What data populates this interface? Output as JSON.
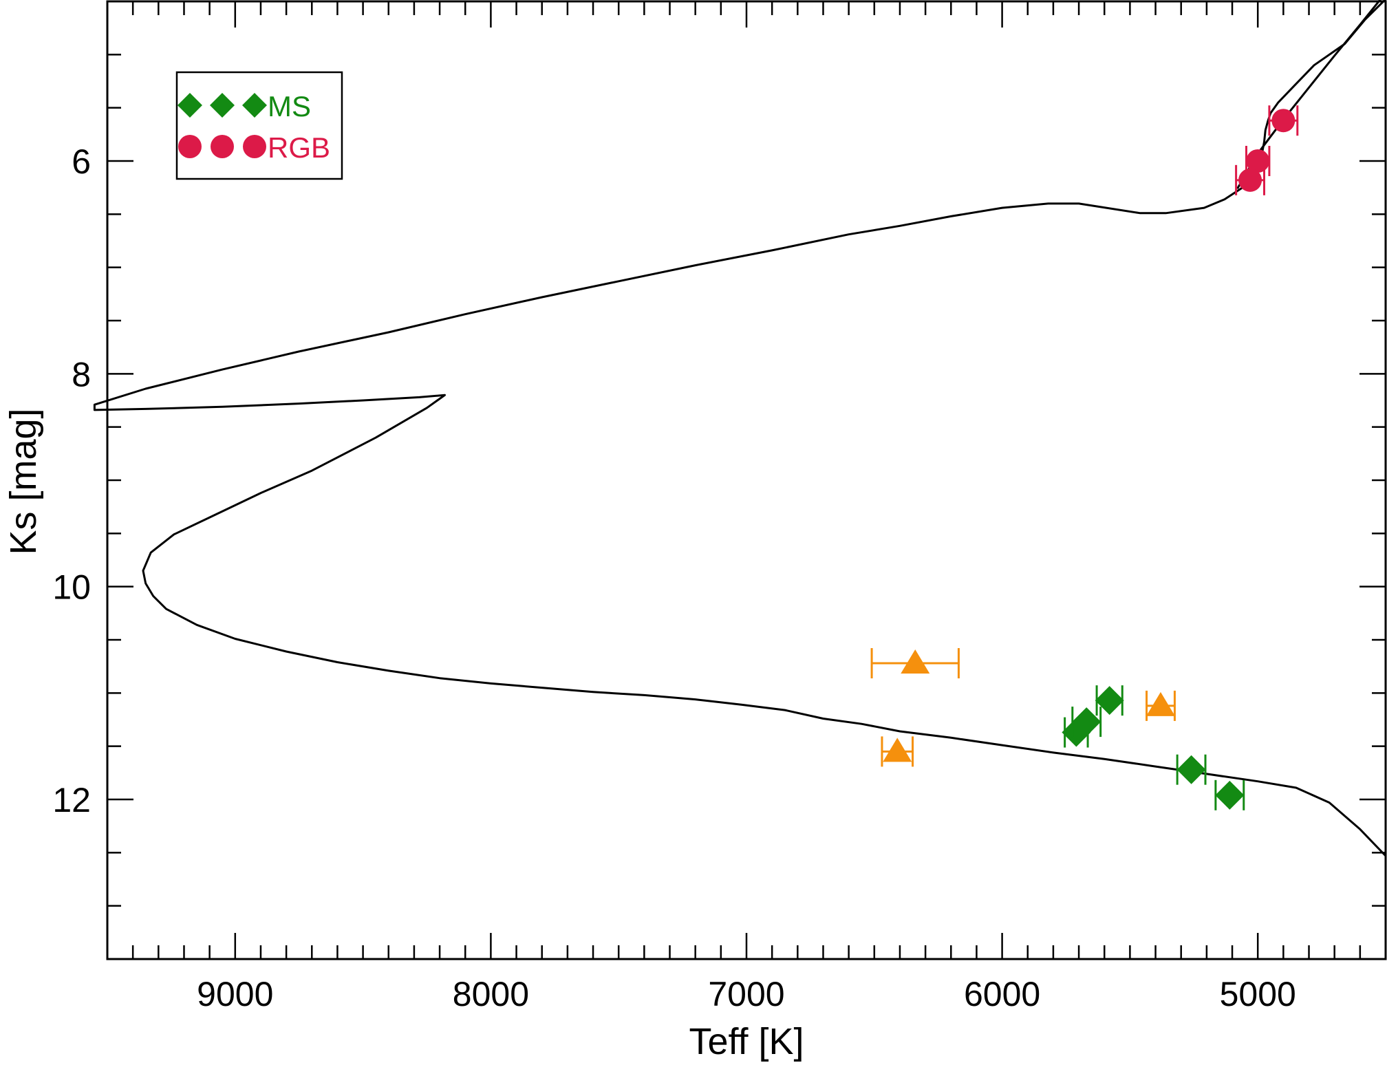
{
  "chart_data": {
    "type": "scatter",
    "xlabel": "Teff [K]",
    "ylabel": "Ks [mag]",
    "xlim": [
      9500,
      4500
    ],
    "ylim": [
      13.5,
      4.5
    ],
    "y_inverted": true,
    "x_inverted": true,
    "x_major_ticks": [
      9000,
      8000,
      7000,
      6000,
      5000
    ],
    "x_minor_step": 100,
    "y_major_ticks": [
      6,
      8,
      10,
      12
    ],
    "y_minor_step": 0.5,
    "x_tick_labels": [
      "9000",
      "8000",
      "7000",
      "6000",
      "5000"
    ],
    "y_tick_labels": [
      "6",
      "8",
      "10",
      "12"
    ],
    "grid": false,
    "legend_position": "top-left",
    "legend": [
      {
        "label": "MS",
        "marker": "diamond",
        "color": "#138a13"
      },
      {
        "label": "RGB",
        "marker": "circle",
        "color": "#dc1a48"
      }
    ],
    "isochrone": {
      "color": "#000000",
      "x": [
        4500,
        4580,
        4660,
        4780,
        4860,
        4920,
        4950,
        4960,
        4970,
        4975,
        4990,
        5020,
        5060,
        5130,
        5210,
        5360,
        5460,
        5700,
        5820,
        6000,
        6200,
        6400,
        6600,
        6900,
        7200,
        7500,
        7800,
        8100,
        8400,
        8750,
        9050,
        9350,
        9550,
        9550,
        9350,
        9050,
        8750,
        8500,
        8280,
        8180,
        8250,
        8450,
        8700,
        8900,
        9100,
        9240,
        9330,
        9360,
        9350,
        9320,
        9270,
        9150,
        9000,
        8800,
        8600,
        8400,
        8200,
        8000,
        7800,
        7600,
        7400,
        7200,
        7020,
        6850,
        6700,
        6550,
        6400,
        6200,
        6000,
        5800,
        5600,
        5400,
        5200,
        5000,
        4850,
        4720,
        4600,
        4500
      ],
      "y": [
        4.48,
        4.67,
        4.9,
        5.1,
        5.3,
        5.45,
        5.55,
        5.62,
        5.71,
        5.82,
        6.01,
        6.12,
        6.25,
        6.36,
        6.44,
        6.49,
        6.49,
        6.4,
        6.4,
        6.44,
        6.52,
        6.61,
        6.69,
        6.84,
        6.98,
        7.13,
        7.28,
        7.44,
        7.61,
        7.79,
        7.96,
        8.14,
        8.29,
        8.34,
        8.33,
        8.31,
        8.28,
        8.25,
        8.22,
        8.2,
        8.32,
        8.6,
        8.91,
        9.12,
        9.35,
        9.51,
        9.68,
        9.85,
        9.97,
        10.09,
        10.21,
        10.36,
        10.49,
        10.61,
        10.71,
        10.79,
        10.86,
        10.91,
        10.95,
        10.99,
        11.02,
        11.06,
        11.11,
        11.16,
        11.24,
        11.29,
        11.36,
        11.42,
        11.49,
        11.56,
        11.62,
        11.69,
        11.76,
        11.83,
        11.89,
        12.03,
        12.28,
        12.53
      ]
    },
    "isochrone_rgb_lower": {
      "color": "#000000",
      "x": [
        4520,
        4600,
        4700,
        4800,
        4900,
        5000,
        5080
      ],
      "y": [
        4.48,
        4.72,
        5.01,
        5.31,
        5.61,
        5.93,
        6.26
      ]
    },
    "series": [
      {
        "name": "MS",
        "marker": "diamond",
        "color": "#138a13",
        "points": [
          {
            "x": 5710,
            "y": 11.37,
            "xerr": 45
          },
          {
            "x": 5670,
            "y": 11.27,
            "xerr": 55
          },
          {
            "x": 5580,
            "y": 11.07,
            "xerr": 50
          },
          {
            "x": 5260,
            "y": 11.72,
            "xerr": 55
          },
          {
            "x": 5110,
            "y": 11.96,
            "xerr": 55
          }
        ]
      },
      {
        "name": "RGB",
        "marker": "circle",
        "color": "#dc1a48",
        "points": [
          {
            "x": 4900,
            "y": 5.62,
            "xerr": 55
          },
          {
            "x": 5000,
            "y": 6.0,
            "xerr": 45
          },
          {
            "x": 5030,
            "y": 6.18,
            "xerr": 55
          }
        ]
      },
      {
        "marker": "triangle",
        "color": "#f5900d",
        "points": [
          {
            "x": 6340,
            "y": 10.72,
            "xerr": 170
          },
          {
            "x": 6410,
            "y": 11.55,
            "xerr": 60
          },
          {
            "x": 5380,
            "y": 11.12,
            "xerr": 55
          }
        ]
      }
    ]
  }
}
